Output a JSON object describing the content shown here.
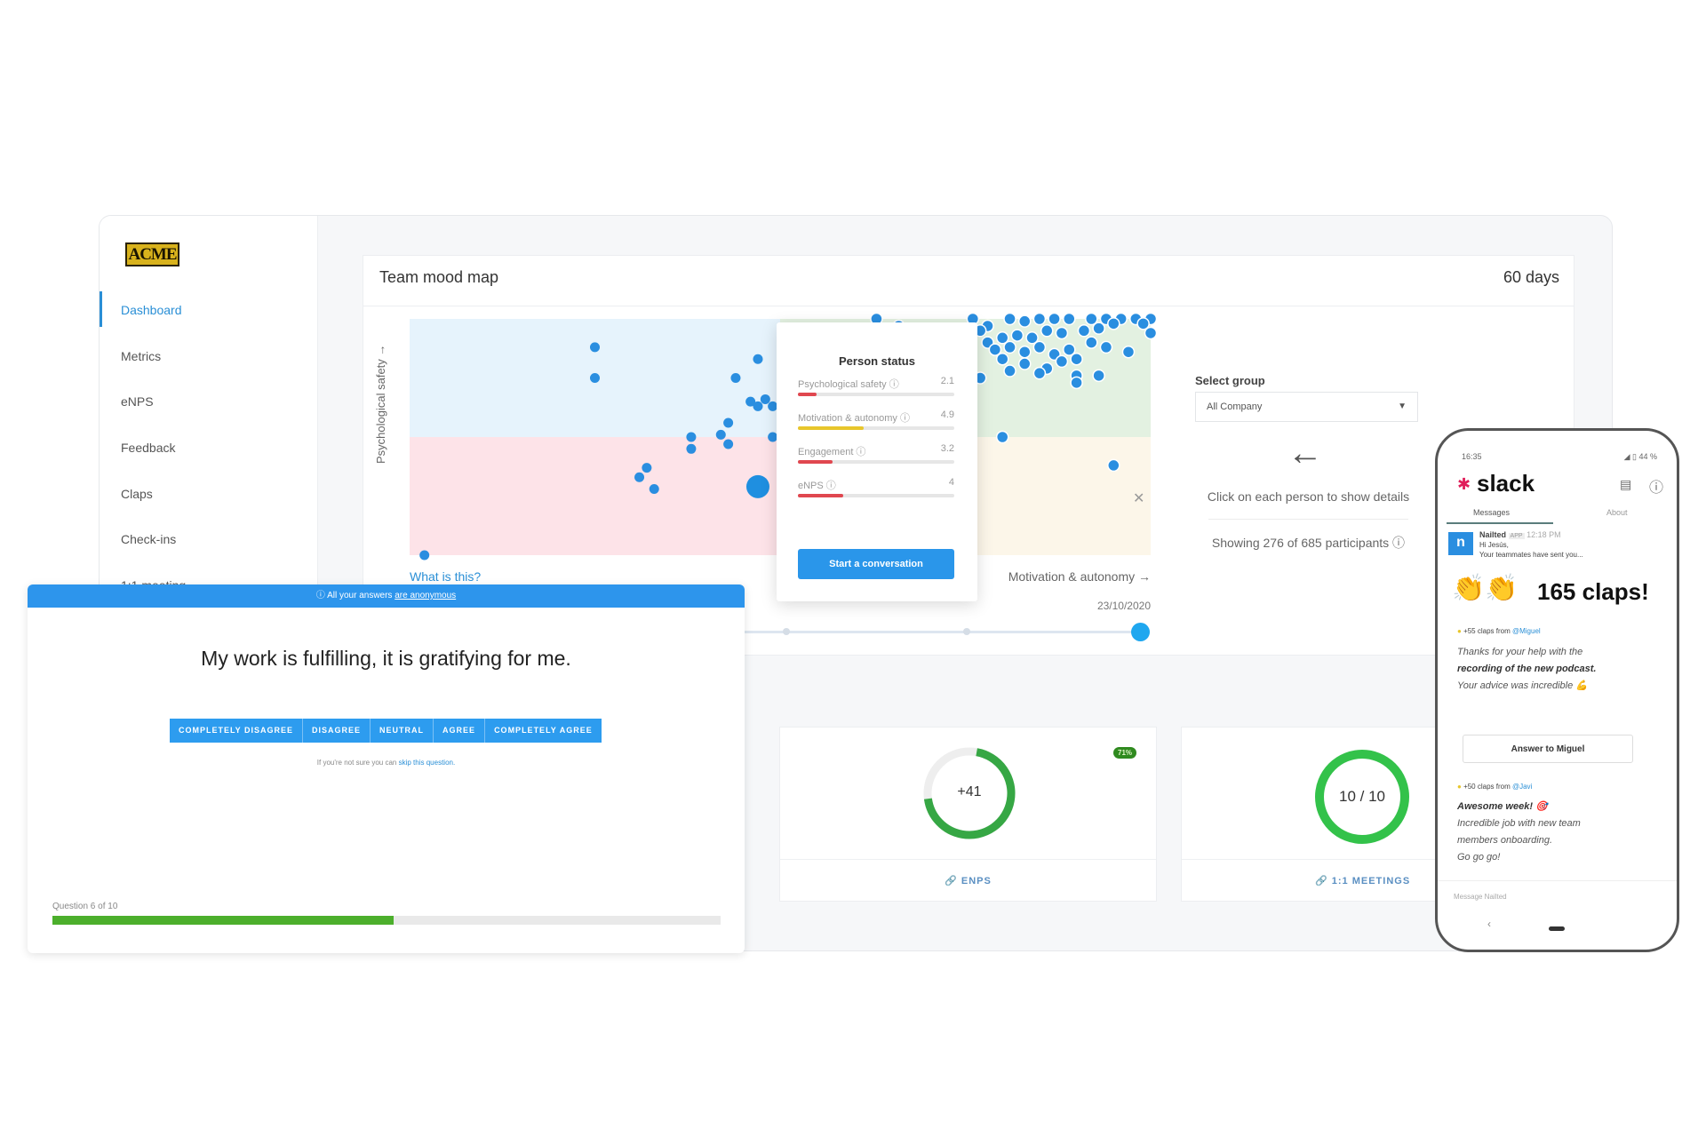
{
  "sidebar": {
    "logo": "ACME",
    "items": [
      {
        "label": "Dashboard",
        "active": true
      },
      {
        "label": "Metrics"
      },
      {
        "label": "eNPS"
      },
      {
        "label": "Feedback"
      },
      {
        "label": "Claps"
      },
      {
        "label": "Check-ins"
      },
      {
        "label": "1:1 meeting"
      }
    ]
  },
  "mood_map": {
    "title": "Team mood map",
    "period": "60 days",
    "y_axis": "Psychological safety →",
    "x_axis": "Motivation & autonomy →",
    "help_link": "What is this?",
    "date": "23/10/2020",
    "close_icon": "close-icon"
  },
  "colors": {
    "accent": "#2a96ea",
    "q_top_left": "#e6f3fc",
    "q_bottom_left": "#fde3e8",
    "q_top_right": "#e3f1e1",
    "q_bottom_right": "#fcf6e9",
    "dot": "#2a8ee0"
  },
  "chart_data": {
    "type": "scatter",
    "xlabel": "Motivation & autonomy →",
    "ylabel": "Psychological safety →",
    "xlim": [
      0,
      10
    ],
    "ylim": [
      0,
      10
    ],
    "grid": false,
    "selected": {
      "x": 4.7,
      "y": 2.9
    },
    "points": [
      [
        2.5,
        8.8
      ],
      [
        2.5,
        7.5
      ],
      [
        4.7,
        8.3
      ],
      [
        4.4,
        7.5
      ],
      [
        4.6,
        6.5
      ],
      [
        4.7,
        6.3
      ],
      [
        4.8,
        6.6
      ],
      [
        4.9,
        6.3
      ],
      [
        4.3,
        5.6
      ],
      [
        4.2,
        5.1
      ],
      [
        4.3,
        4.7
      ],
      [
        3.8,
        5.0
      ],
      [
        3.8,
        4.5
      ],
      [
        3.2,
        3.7
      ],
      [
        3.1,
        3.3
      ],
      [
        3.3,
        2.8
      ],
      [
        0.2,
        0.0
      ],
      [
        4.9,
        5.0
      ],
      [
        6.3,
        10
      ],
      [
        6.6,
        9.7
      ],
      [
        7.6,
        10
      ],
      [
        7.8,
        9.7
      ],
      [
        8.1,
        10
      ],
      [
        8.3,
        9.9
      ],
      [
        8.5,
        10
      ],
      [
        8.7,
        10
      ],
      [
        8.9,
        10
      ],
      [
        9.2,
        10
      ],
      [
        9.4,
        10
      ],
      [
        9.6,
        10
      ],
      [
        9.8,
        10
      ],
      [
        10,
        10
      ],
      [
        10,
        9.4
      ],
      [
        9.9,
        9.8
      ],
      [
        9.5,
        9.8
      ],
      [
        9.3,
        9.6
      ],
      [
        9.1,
        9.5
      ],
      [
        8.8,
        9.4
      ],
      [
        8.6,
        9.5
      ],
      [
        8.4,
        9.2
      ],
      [
        8.2,
        9.3
      ],
      [
        8.0,
        9.2
      ],
      [
        7.8,
        9.0
      ],
      [
        7.9,
        8.7
      ],
      [
        8.1,
        8.8
      ],
      [
        8.3,
        8.6
      ],
      [
        8.5,
        8.8
      ],
      [
        8.7,
        8.5
      ],
      [
        8.9,
        8.7
      ],
      [
        9.0,
        8.3
      ],
      [
        9.4,
        8.8
      ],
      [
        9.7,
        8.6
      ],
      [
        8.0,
        8.3
      ],
      [
        8.3,
        8.1
      ],
      [
        8.6,
        7.9
      ],
      [
        8.8,
        8.2
      ],
      [
        9.0,
        7.6
      ],
      [
        9.0,
        7.3
      ],
      [
        9.3,
        7.6
      ],
      [
        8.5,
        7.7
      ],
      [
        8.1,
        7.8
      ],
      [
        7.7,
        7.5
      ],
      [
        8.0,
        5.0
      ],
      [
        9.5,
        3.8
      ],
      [
        7.5,
        8.6
      ],
      [
        7.7,
        9.5
      ],
      [
        9.2,
        9.0
      ]
    ]
  },
  "person_status": {
    "title": "Person status",
    "metrics": [
      {
        "label": "Psychological safety ⓘ",
        "value": "2.1",
        "fraction": 0.12,
        "color": "#e0474f"
      },
      {
        "label": "Motivation & autonomy ⓘ",
        "value": "4.9",
        "fraction": 0.42,
        "color": "#e8c62b"
      },
      {
        "label": "Engagement ⓘ",
        "value": "3.2",
        "fraction": 0.22,
        "color": "#e0474f"
      },
      {
        "label": "eNPS ⓘ",
        "value": "4",
        "fraction": 0.29,
        "color": "#e0474f"
      }
    ],
    "button": "Start a conversation"
  },
  "group": {
    "label": "Select group",
    "value": "All Company",
    "hint": "Click on each person to show details",
    "showing": "Showing 276 of 685 participants ⓘ"
  },
  "cards": {
    "enps": {
      "value": "+41",
      "badge": "71%",
      "link": "ENPS",
      "fraction": 0.7
    },
    "meetings": {
      "value": "10 / 10",
      "link": "1:1 MEETINGS",
      "fraction": 1.0
    }
  },
  "survey": {
    "banner": "ⓘ All your answers ",
    "banner_link": "are anonymous",
    "question": "My work is fulfilling, it is gratifying for me.",
    "options": [
      "COMPLETELY DISAGREE",
      "DISAGREE",
      "NEUTRAL",
      "AGREE",
      "COMPLETELY AGREE"
    ],
    "skip_prefix": "If you're not sure you can ",
    "skip_link": "skip this question.",
    "progress_label": "Question 6 of 10",
    "progress": 0.6
  },
  "phone": {
    "time": "16:35",
    "status": "◢ ▯ 44 %",
    "app": "slack",
    "tabs": [
      "Messages",
      "About"
    ],
    "sender": "Nailted",
    "badge": "APP",
    "sent_time": "12:18 PM",
    "greeting": "Hi Jesús,",
    "preview": "Your teammates have sent you...",
    "claps_emoji": "👏👏",
    "claps": "165 claps!",
    "msg1": {
      "header": "+55 claps from ",
      "from": "@Miguel",
      "lines": [
        "Thanks for your help with the",
        "recording of the new podcast.",
        "Your advice was incredible 💪"
      ],
      "button": "Answer to Miguel"
    },
    "msg2": {
      "header": "+50 claps from ",
      "from": "@Javi",
      "title": "Awesome week! 🎯",
      "lines": [
        "Incredible job with new team",
        "members onboarding.",
        "Go go go!"
      ]
    },
    "input_placeholder": "Message Nailted",
    "back": "‹"
  }
}
